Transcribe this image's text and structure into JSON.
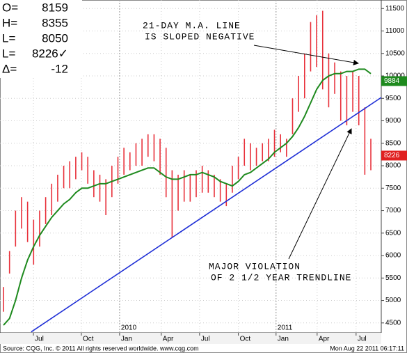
{
  "chart_data": {
    "type": "range",
    "readout": [
      {
        "label": "O=",
        "text": "8159"
      },
      {
        "label": "H=",
        "text": "8355"
      },
      {
        "label": "L=",
        "text": "8050"
      },
      {
        "label": "L=",
        "text": "8226✓"
      },
      {
        "label": "Δ=",
        "text": "-12"
      }
    ],
    "x": [
      0,
      1,
      2,
      3,
      4,
      5,
      6,
      7,
      8,
      9,
      10,
      11,
      12,
      13,
      14,
      15,
      16,
      17,
      18,
      19,
      20,
      21,
      22,
      23,
      24,
      25,
      26,
      27,
      28,
      29,
      30,
      31,
      32,
      33,
      34,
      35,
      36,
      37,
      38,
      39,
      40,
      41,
      42,
      43,
      44,
      45,
      46,
      47,
      48,
      49,
      50,
      51,
      52,
      53,
      54,
      55,
      56,
      57,
      58,
      59,
      60,
      61
    ],
    "bars": {
      "color": "#e8303a",
      "high": [
        5300,
        6100,
        7000,
        7300,
        7200,
        6800,
        7000,
        7300,
        7600,
        7800,
        8000,
        8100,
        8200,
        8300,
        8200,
        7900,
        7800,
        7700,
        8000,
        8200,
        8400,
        8300,
        8500,
        8600,
        8700,
        8700,
        8600,
        8400,
        7900,
        7800,
        7900,
        7800,
        7900,
        8000,
        7900,
        7800,
        7700,
        7600,
        8000,
        8200,
        8600,
        8500,
        8400,
        8500,
        8600,
        8800,
        8700,
        8600,
        9500,
        10000,
        10500,
        11200,
        11350,
        11450,
        10500,
        10300,
        10100,
        10000,
        10100,
        10000,
        9300,
        8600
      ],
      "low": [
        4750,
        5600,
        6200,
        6600,
        6300,
        5800,
        6200,
        6700,
        6900,
        7200,
        7500,
        7500,
        7700,
        7900,
        7600,
        7300,
        7200,
        6900,
        7300,
        7600,
        7800,
        7900,
        8000,
        8000,
        8200,
        8100,
        7800,
        7300,
        6400,
        7000,
        7200,
        7200,
        7300,
        7400,
        7400,
        7300,
        7200,
        7100,
        7400,
        7700,
        8000,
        7900,
        8000,
        8100,
        8100,
        8200,
        8300,
        8200,
        8700,
        9200,
        9500,
        10100,
        10200,
        9700,
        9300,
        9600,
        9000,
        8900,
        9200,
        8900,
        7800,
        7900
      ]
    },
    "ma": {
      "color": "#1e8a1e",
      "values": [
        4450,
        4600,
        5000,
        5500,
        5900,
        6200,
        6450,
        6650,
        6850,
        7000,
        7150,
        7250,
        7400,
        7500,
        7500,
        7550,
        7600,
        7600,
        7650,
        7700,
        7750,
        7800,
        7850,
        7900,
        7950,
        7950,
        7850,
        7750,
        7700,
        7700,
        7750,
        7800,
        7800,
        7850,
        7800,
        7750,
        7650,
        7600,
        7550,
        7650,
        7800,
        7850,
        7950,
        8050,
        8150,
        8300,
        8400,
        8500,
        8650,
        8850,
        9100,
        9400,
        9700,
        9900,
        10000,
        10050,
        10050,
        10100,
        10100,
        10150,
        10150,
        10050
      ]
    },
    "trendline": {
      "color": "#1f2fd6",
      "x": [
        4.6,
        62.73
      ],
      "values": [
        4300,
        9520
      ]
    },
    "price_markers": [
      {
        "value": 9884,
        "color": "#1e8a1e"
      },
      {
        "value": 8226,
        "color": "#e02020"
      }
    ],
    "annotations": [
      {
        "lines": [
          "21-DAY M.A. LINE",
          "IS SLOPED NEGATIVE"
        ]
      },
      {
        "lines": [
          "MAJOR VIOLATION",
          "OF 2 1/2 YEAR TRENDLINE"
        ]
      }
    ],
    "xlim": [
      -0.58,
      62.73
    ],
    "ylim": [
      4280,
      11690
    ],
    "yticks": [
      4500,
      5000,
      5500,
      6000,
      6500,
      7000,
      7500,
      8000,
      8500,
      9000,
      9500,
      10000,
      10500,
      11000,
      11500
    ],
    "xticks": [
      {
        "value": 4.97,
        "label": "Jul"
      },
      {
        "value": 12.93,
        "label": "Oct"
      },
      {
        "value": 19.28,
        "label": "Jan"
      },
      {
        "value": 26.2,
        "label": "Apr"
      },
      {
        "value": 32.56,
        "label": "Jul"
      },
      {
        "value": 39.0,
        "label": "Oct"
      },
      {
        "value": 45.26,
        "label": "Jan"
      },
      {
        "value": 52.08,
        "label": "Apr"
      },
      {
        "value": 58.55,
        "label": "Jul"
      }
    ],
    "year_ticks": [
      {
        "value": 19.28,
        "label": "2010"
      },
      {
        "value": 45.26,
        "label": "2011"
      }
    ],
    "grid": true,
    "source": "Source: CQG, Inc. © 2011 All rights reserved worldwide. www.cqg.com",
    "timestamp": "Mon Aug 22 2011 06:17:11"
  }
}
